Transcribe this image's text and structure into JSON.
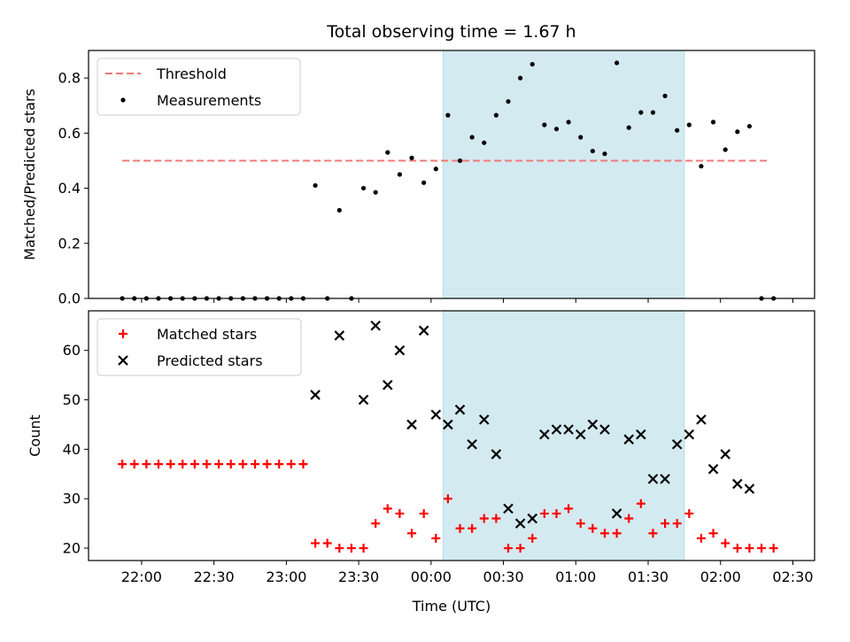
{
  "chart_data": [
    {
      "type": "scatter",
      "title": "Total observing time = 1.67 h",
      "ylabel": "Matched/Predicted stars",
      "ylim": [
        0,
        0.9
      ],
      "yticks": [
        0.0,
        0.2,
        0.4,
        0.6,
        0.8
      ],
      "ytick_labels": [
        "0.0",
        "0.2",
        "0.4",
        "0.6",
        "0.8"
      ],
      "xlim": [
        "21:38",
        "02:39"
      ],
      "shaded_span": {
        "from": "00:05",
        "to": "01:45",
        "color": "#d4eaf1"
      },
      "legend": {
        "placement": "top-left",
        "entries": [
          "Threshold",
          "Measurements"
        ]
      },
      "series": [
        {
          "name": "Threshold",
          "style": "dashed-line",
          "color": "#f07878",
          "points": [
            [
              "21:52",
              0.5
            ],
            [
              "02:20",
              0.5
            ]
          ]
        },
        {
          "name": "Measurements",
          "style": "dot",
          "color": "#000000",
          "points": [
            [
              "21:52",
              0.0
            ],
            [
              "21:57",
              0.0
            ],
            [
              "22:02",
              0.0
            ],
            [
              "22:07",
              0.0
            ],
            [
              "22:12",
              0.0
            ],
            [
              "22:17",
              0.0
            ],
            [
              "22:22",
              0.0
            ],
            [
              "22:27",
              0.0
            ],
            [
              "22:32",
              0.0
            ],
            [
              "22:37",
              0.0
            ],
            [
              "22:42",
              0.0
            ],
            [
              "22:47",
              0.0
            ],
            [
              "22:52",
              0.0
            ],
            [
              "22:57",
              0.0
            ],
            [
              "23:02",
              0.0
            ],
            [
              "23:07",
              0.0
            ],
            [
              "23:12",
              0.41
            ],
            [
              "23:17",
              0.0
            ],
            [
              "23:22",
              0.32
            ],
            [
              "23:27",
              0.0
            ],
            [
              "23:32",
              0.4
            ],
            [
              "23:37",
              0.385
            ],
            [
              "23:42",
              0.53
            ],
            [
              "23:47",
              0.45
            ],
            [
              "23:52",
              0.51
            ],
            [
              "23:57",
              0.42
            ],
            [
              "00:02",
              0.47
            ],
            [
              "00:07",
              0.665
            ],
            [
              "00:12",
              0.5
            ],
            [
              "00:17",
              0.585
            ],
            [
              "00:22",
              0.565
            ],
            [
              "00:27",
              0.665
            ],
            [
              "00:32",
              0.715
            ],
            [
              "00:37",
              0.8
            ],
            [
              "00:42",
              0.85
            ],
            [
              "00:47",
              0.63
            ],
            [
              "00:52",
              0.615
            ],
            [
              "00:57",
              0.64
            ],
            [
              "01:02",
              0.585
            ],
            [
              "01:07",
              0.535
            ],
            [
              "01:12",
              0.525
            ],
            [
              "01:17",
              0.855
            ],
            [
              "01:22",
              0.62
            ],
            [
              "01:27",
              0.675
            ],
            [
              "01:32",
              0.675
            ],
            [
              "01:37",
              0.735
            ],
            [
              "01:42",
              0.61
            ],
            [
              "01:47",
              0.63
            ],
            [
              "01:52",
              0.48
            ],
            [
              "01:57",
              0.64
            ],
            [
              "02:02",
              0.54
            ],
            [
              "02:07",
              0.605
            ],
            [
              "02:12",
              0.625
            ],
            [
              "02:17",
              0.0
            ],
            [
              "02:22",
              0.0
            ]
          ]
        }
      ]
    },
    {
      "type": "scatter",
      "xlabel": "Time (UTC)",
      "ylabel": "Count",
      "ylim": [
        17.5,
        68
      ],
      "yticks": [
        20,
        30,
        40,
        50,
        60
      ],
      "ytick_labels": [
        "20",
        "30",
        "40",
        "50",
        "60"
      ],
      "xlim": [
        "21:38",
        "02:39"
      ],
      "xticks": [
        "22:00",
        "22:30",
        "23:00",
        "23:30",
        "00:00",
        "00:30",
        "01:00",
        "01:30",
        "02:00",
        "02:30"
      ],
      "xtick_labels": [
        "22:00",
        "22:30",
        "23:00",
        "23:30",
        "00:00",
        "00:30",
        "01:00",
        "01:30",
        "02:00",
        "02:30"
      ],
      "shaded_span": {
        "from": "00:05",
        "to": "01:45",
        "color": "#d4eaf1"
      },
      "legend": {
        "placement": "top-left",
        "entries": [
          "Matched stars",
          "Predicted stars"
        ]
      },
      "series": [
        {
          "name": "Matched stars",
          "marker": "plus",
          "color": "#ff0000",
          "points": [
            [
              "21:52",
              37
            ],
            [
              "21:57",
              37
            ],
            [
              "22:02",
              37
            ],
            [
              "22:07",
              37
            ],
            [
              "22:12",
              37
            ],
            [
              "22:17",
              37
            ],
            [
              "22:22",
              37
            ],
            [
              "22:27",
              37
            ],
            [
              "22:32",
              37
            ],
            [
              "22:37",
              37
            ],
            [
              "22:42",
              37
            ],
            [
              "22:47",
              37
            ],
            [
              "22:52",
              37
            ],
            [
              "22:57",
              37
            ],
            [
              "23:02",
              37
            ],
            [
              "23:07",
              37
            ],
            [
              "23:12",
              21
            ],
            [
              "23:17",
              21
            ],
            [
              "23:22",
              20
            ],
            [
              "23:27",
              20
            ],
            [
              "23:32",
              20
            ],
            [
              "23:37",
              25
            ],
            [
              "23:42",
              28
            ],
            [
              "23:47",
              27
            ],
            [
              "23:52",
              23
            ],
            [
              "23:57",
              27
            ],
            [
              "00:02",
              22
            ],
            [
              "00:07",
              30
            ],
            [
              "00:12",
              24
            ],
            [
              "00:17",
              24
            ],
            [
              "00:22",
              26
            ],
            [
              "00:27",
              26
            ],
            [
              "00:32",
              20
            ],
            [
              "00:37",
              20
            ],
            [
              "00:42",
              22
            ],
            [
              "00:47",
              27
            ],
            [
              "00:52",
              27
            ],
            [
              "00:57",
              28
            ],
            [
              "01:02",
              25
            ],
            [
              "01:07",
              24
            ],
            [
              "01:12",
              23
            ],
            [
              "01:17",
              23
            ],
            [
              "01:22",
              26
            ],
            [
              "01:27",
              29
            ],
            [
              "01:32",
              23
            ],
            [
              "01:37",
              25
            ],
            [
              "01:42",
              25
            ],
            [
              "01:47",
              27
            ],
            [
              "01:52",
              22
            ],
            [
              "01:57",
              23
            ],
            [
              "02:02",
              21
            ],
            [
              "02:07",
              20
            ],
            [
              "02:12",
              20
            ],
            [
              "02:17",
              20
            ],
            [
              "02:22",
              20
            ]
          ]
        },
        {
          "name": "Predicted stars",
          "marker": "x",
          "color": "#000000",
          "points": [
            [
              "23:12",
              51
            ],
            [
              "23:22",
              63
            ],
            [
              "23:32",
              50
            ],
            [
              "23:37",
              65
            ],
            [
              "23:42",
              53
            ],
            [
              "23:47",
              60
            ],
            [
              "23:52",
              45
            ],
            [
              "23:57",
              64
            ],
            [
              "00:02",
              47
            ],
            [
              "00:07",
              45
            ],
            [
              "00:12",
              48
            ],
            [
              "00:17",
              41
            ],
            [
              "00:22",
              46
            ],
            [
              "00:27",
              39
            ],
            [
              "00:32",
              28
            ],
            [
              "00:37",
              25
            ],
            [
              "00:42",
              26
            ],
            [
              "00:47",
              43
            ],
            [
              "00:52",
              44
            ],
            [
              "00:57",
              44
            ],
            [
              "01:02",
              43
            ],
            [
              "01:07",
              45
            ],
            [
              "01:12",
              44
            ],
            [
              "01:17",
              27
            ],
            [
              "01:22",
              42
            ],
            [
              "01:27",
              43
            ],
            [
              "01:32",
              34
            ],
            [
              "01:37",
              34
            ],
            [
              "01:42",
              41
            ],
            [
              "01:47",
              43
            ],
            [
              "01:52",
              46
            ],
            [
              "01:57",
              36
            ],
            [
              "02:02",
              39
            ],
            [
              "02:07",
              33
            ],
            [
              "02:12",
              32
            ]
          ]
        }
      ]
    }
  ]
}
